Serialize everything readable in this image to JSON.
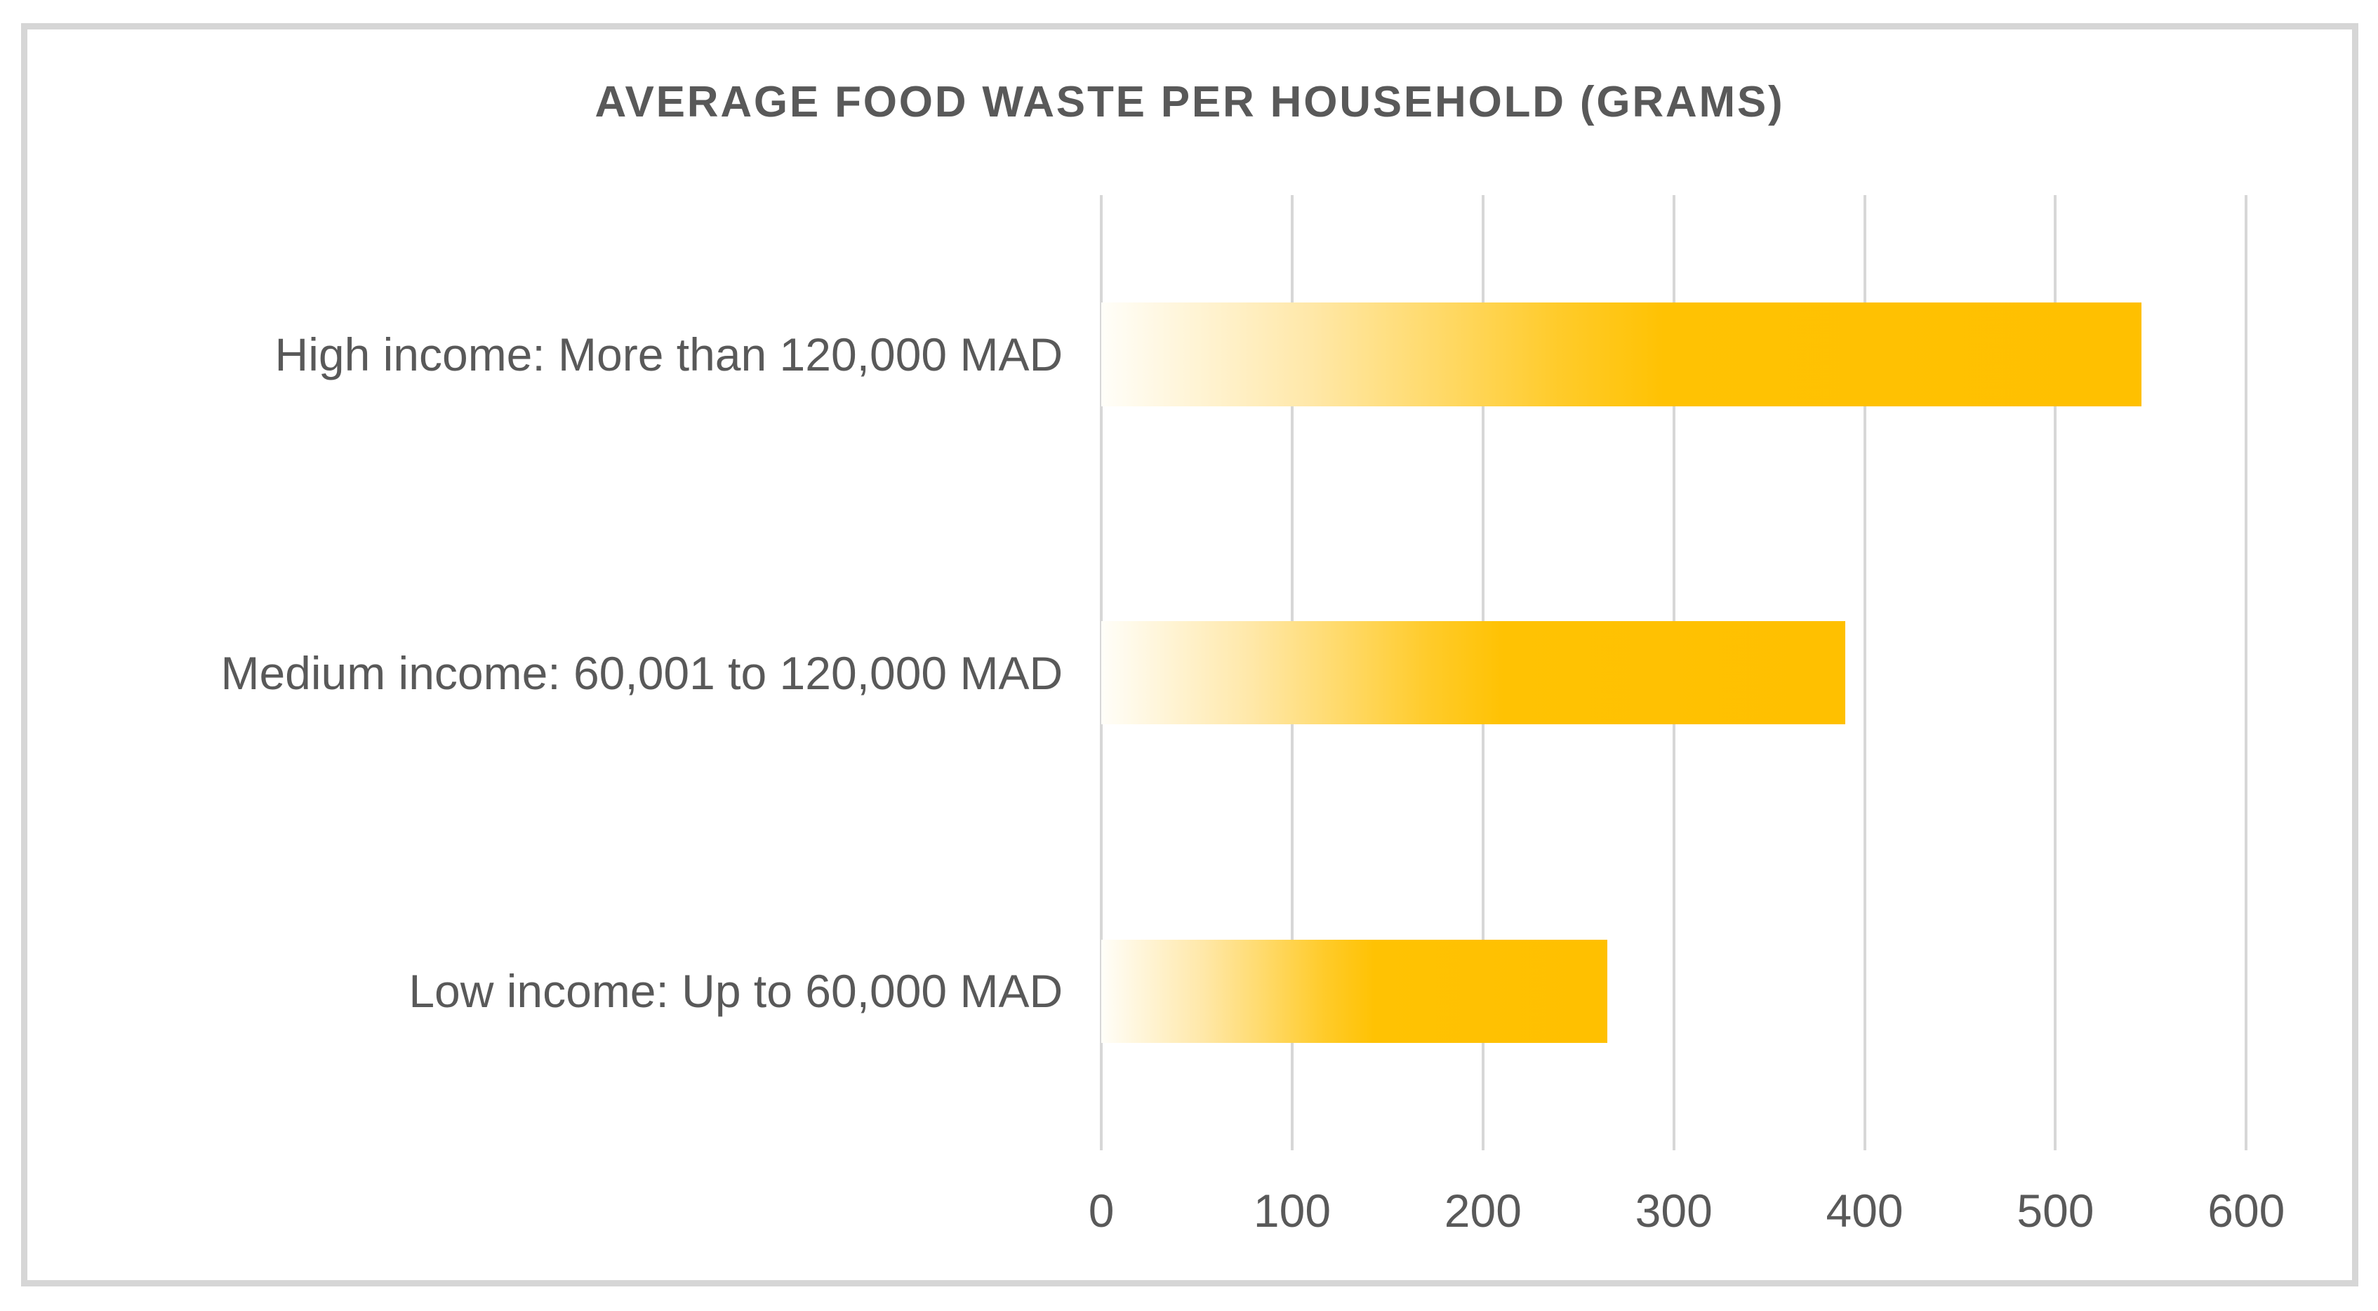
{
  "chart_data": {
    "type": "bar",
    "orientation": "horizontal",
    "title": "AVERAGE FOOD WASTE PER HOUSEHOLD (GRAMS)",
    "categories": [
      "High income: More than 120,000 MAD",
      "Medium income: 60,001 to 120,000 MAD",
      "Low income: Up to 60,000 MAD"
    ],
    "values": [
      545,
      390,
      265
    ],
    "xlabel": "",
    "ylabel": "",
    "xlim": [
      0,
      600
    ],
    "ticks": [
      0,
      100,
      200,
      300,
      400,
      500,
      600
    ],
    "grid": "vertical-gridlines-on",
    "legend": "none",
    "colors": {
      "bar_gradient_start": "#FFFEF9",
      "bar_gradient_end": "#FFC000",
      "gridline": "#D7D7D7",
      "text": "#595959",
      "frame_border": "#D6D6D6",
      "background": "#FFFFFF"
    }
  }
}
